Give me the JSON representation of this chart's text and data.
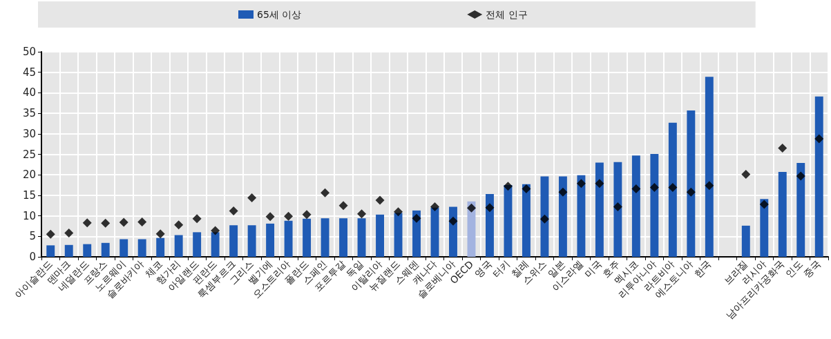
{
  "chart_data": {
    "type": "bar",
    "categories": [
      "아이슬란드",
      "덴마크",
      "네덜란드",
      "프랑스",
      "노르웨이",
      "슬로바키아",
      "체코",
      "헝가리",
      "아일랜드",
      "핀란드",
      "룩셈부르크",
      "그리스",
      "벨기에",
      "오스트리아",
      "폴란드",
      "스페인",
      "포르투갈",
      "독일",
      "이탈리아",
      "뉴질랜드",
      "스웨덴",
      "캐나다",
      "슬로베니아",
      "OECD",
      "영국",
      "터키",
      "칠레",
      "스위스",
      "일본",
      "이스라엘",
      "미국",
      "호주",
      "멕시코",
      "리투아니아",
      "라트비아",
      "에스토니아",
      "한국",
      null,
      "브라질",
      "러시아",
      "남아프리카공화국",
      "인도",
      "중국"
    ],
    "series": [
      {
        "name": "65세 이상",
        "color": "#1f5bb5",
        "colors": [
          "#1f5bb5",
          "#1f5bb5",
          "#1f5bb5",
          "#1f5bb5",
          "#1f5bb5",
          "#1f5bb5",
          "#1f5bb5",
          "#1f5bb5",
          "#1f5bb5",
          "#1f5bb5",
          "#1f5bb5",
          "#1f5bb5",
          "#1f5bb5",
          "#1f5bb5",
          "#1f5bb5",
          "#1f5bb5",
          "#1f5bb5",
          "#1f5bb5",
          "#1f5bb5",
          "#1f5bb5",
          "#1f5bb5",
          "#1f5bb5",
          "#1f5bb5",
          "#a3b3e0",
          "#1f5bb5",
          "#1f5bb5",
          "#1f5bb5",
          "#1f5bb5",
          "#1f5bb5",
          "#1f5bb5",
          "#1f5bb5",
          "#1f5bb5",
          "#1f5bb5",
          "#1f5bb5",
          "#1f5bb5",
          "#1f5bb5",
          "#1f5bb5",
          "#1f5bb5",
          "#1f5bb5",
          "#1f5bb5",
          "#1f5bb5",
          "#1f5bb5",
          "#1f5bb5"
        ],
        "values": [
          2.8,
          2.9,
          3.1,
          3.4,
          4.3,
          4.3,
          4.6,
          5.3,
          6.0,
          6.0,
          7.7,
          7.7,
          8.1,
          8.8,
          9.3,
          9.4,
          9.4,
          9.4,
          10.3,
          10.7,
          11.3,
          12.0,
          12.2,
          13.5,
          15.3,
          17.5,
          17.7,
          19.6,
          19.6,
          19.9,
          23.0,
          23.1,
          24.7,
          25.1,
          32.7,
          35.7,
          43.9,
          null,
          7.6,
          14.1,
          20.7,
          22.9,
          39.1
        ]
      },
      {
        "name": "전체 인구",
        "type": "scatter",
        "marker": "diamond",
        "color": "#000000",
        "values": [
          5.5,
          5.8,
          8.3,
          8.2,
          8.4,
          8.5,
          5.6,
          7.8,
          9.3,
          6.4,
          11.2,
          14.4,
          9.8,
          9.9,
          10.3,
          15.6,
          12.5,
          10.5,
          13.8,
          11.0,
          9.4,
          12.2,
          8.7,
          11.9,
          12.0,
          17.2,
          16.6,
          9.2,
          15.8,
          17.9,
          17.9,
          12.2,
          16.6,
          16.9,
          16.9,
          15.8,
          17.4,
          null,
          20.1,
          12.8,
          26.5,
          19.7,
          28.8
        ]
      }
    ],
    "ylim": [
      0,
      50
    ],
    "yticks": [
      0,
      5,
      10,
      15,
      20,
      25,
      30,
      35,
      40,
      45,
      50
    ],
    "grid": true,
    "legend": "top"
  }
}
